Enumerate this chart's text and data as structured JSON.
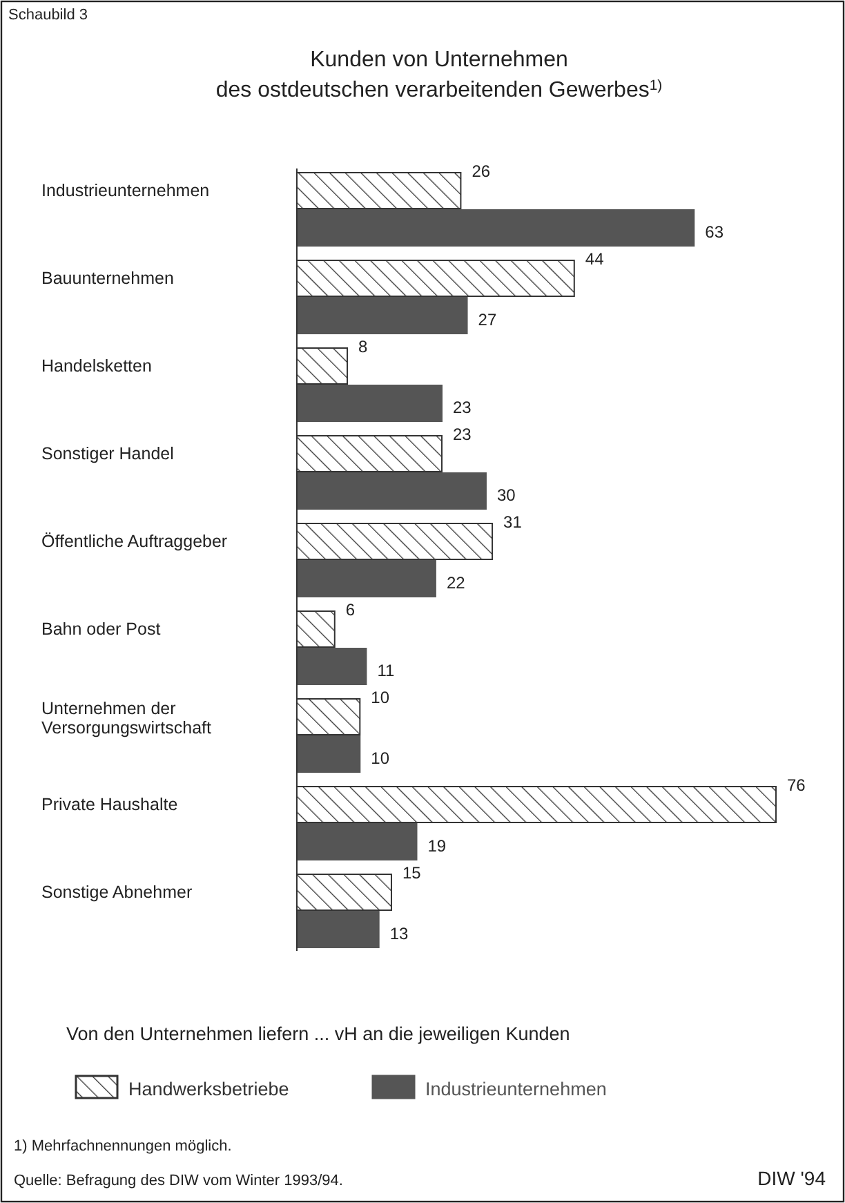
{
  "chart_data": {
    "type": "bar",
    "orientation": "horizontal",
    "title": "Kunden von Unternehmen des ostdeutschen verarbeitenden Gewerbes$^{1)}$",
    "xlabel": "Von den Unternehmen liefern ... vH an die jeweiligen Kunden",
    "categories": [
      "Industrieunternehmen",
      "Bauunternehmen",
      "Handelsketten",
      "Sonstiger Handel",
      "Öffentliche Auftraggeber",
      "Bahn oder Post",
      "Unternehmen der Versorgungswirtschaft",
      "Private Haushalte",
      "Sonstige Abnehmer"
    ],
    "series": [
      {
        "name": "Handwerksbetriebe",
        "color": "#333333",
        "values": [
          26,
          44,
          8,
          23,
          31,
          6,
          10,
          76,
          15
        ]
      },
      {
        "name": "Industrieunternehmen",
        "color": "#555555",
        "values": [
          63,
          27,
          23,
          30,
          22,
          11,
          10,
          19,
          13
        ]
      }
    ],
    "data_labels": true,
    "legend": "bottom",
    "annotations": [
      "Schaubild 3",
      "1) Mehrfachnennungen möglich.",
      "Quelle: Befragung des DIW vom Winter 1993/94.",
      "DIW '94"
    ]
  }
}
